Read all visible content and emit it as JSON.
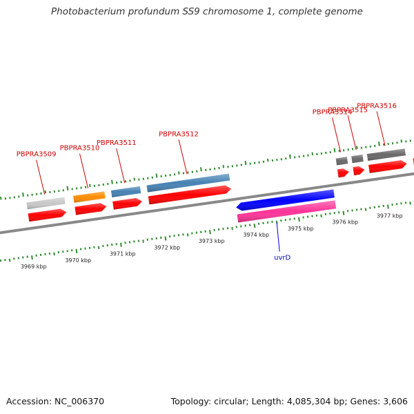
{
  "title": "Photobacterium profundum SS9 chromosome 1, complete genome",
  "footer": {
    "accession": "Accession: NC_006370",
    "summary": "Topology: circular; Length: 4,085,304 bp; Genes: 3,606"
  },
  "colors": {
    "forward_cds": "#ff0000",
    "reverse_cds": "#0000ff",
    "reverse_rna": "#ff3399",
    "ruler": "#2e8b2e",
    "backbone": "#888888",
    "forward_label": "#cc0000",
    "reverse_label": "#0000cc"
  },
  "scale": {
    "unit": "kbp",
    "ticks": [
      {
        "kbp": 3969,
        "label": "3969 kbp"
      },
      {
        "kbp": 3970,
        "label": "3970 kbp"
      },
      {
        "kbp": 3971,
        "label": "3971 kbp"
      },
      {
        "kbp": 3972,
        "label": "3972 kbp"
      },
      {
        "kbp": 3973,
        "label": "3973 kbp"
      },
      {
        "kbp": 3974,
        "label": "3974 kbp"
      },
      {
        "kbp": 3975,
        "label": "3975 kbp"
      },
      {
        "kbp": 3976,
        "label": "3976 kbp"
      },
      {
        "kbp": 3977,
        "label": "3977 kbp"
      }
    ]
  },
  "genes": [
    {
      "label": "PBPRA3509",
      "strand": "+",
      "start_kbp": 3969.05,
      "end_kbp": 3969.9,
      "feature_color": "#c8c8c8"
    },
    {
      "label": "PBPRA3510",
      "strand": "+",
      "start_kbp": 3970.1,
      "end_kbp": 3970.8,
      "feature_color": "#ff8c00"
    },
    {
      "label": "PBPRA3511",
      "strand": "+",
      "start_kbp": 3970.95,
      "end_kbp": 3971.6,
      "feature_color": "#4682b4"
    },
    {
      "label": "PBPRA3512",
      "strand": "+",
      "start_kbp": 3971.75,
      "end_kbp": 3973.6,
      "feature_color": "#4682b4"
    },
    {
      "label": "uvrD",
      "strand": "-",
      "start_kbp": 3973.65,
      "end_kbp": 3975.85,
      "feature_color": "#0000ff"
    },
    {
      "label": "PBPRA3514",
      "strand": "+",
      "start_kbp": 3976.0,
      "end_kbp": 3976.25,
      "feature_color": "#696969"
    },
    {
      "label": "PBPRA3515",
      "strand": "+",
      "start_kbp": 3976.35,
      "end_kbp": 3976.6,
      "feature_color": "#696969"
    },
    {
      "label": "PBPRA3516",
      "strand": "+",
      "start_kbp": 3976.7,
      "end_kbp": 3977.55,
      "feature_color": "#696969"
    }
  ]
}
